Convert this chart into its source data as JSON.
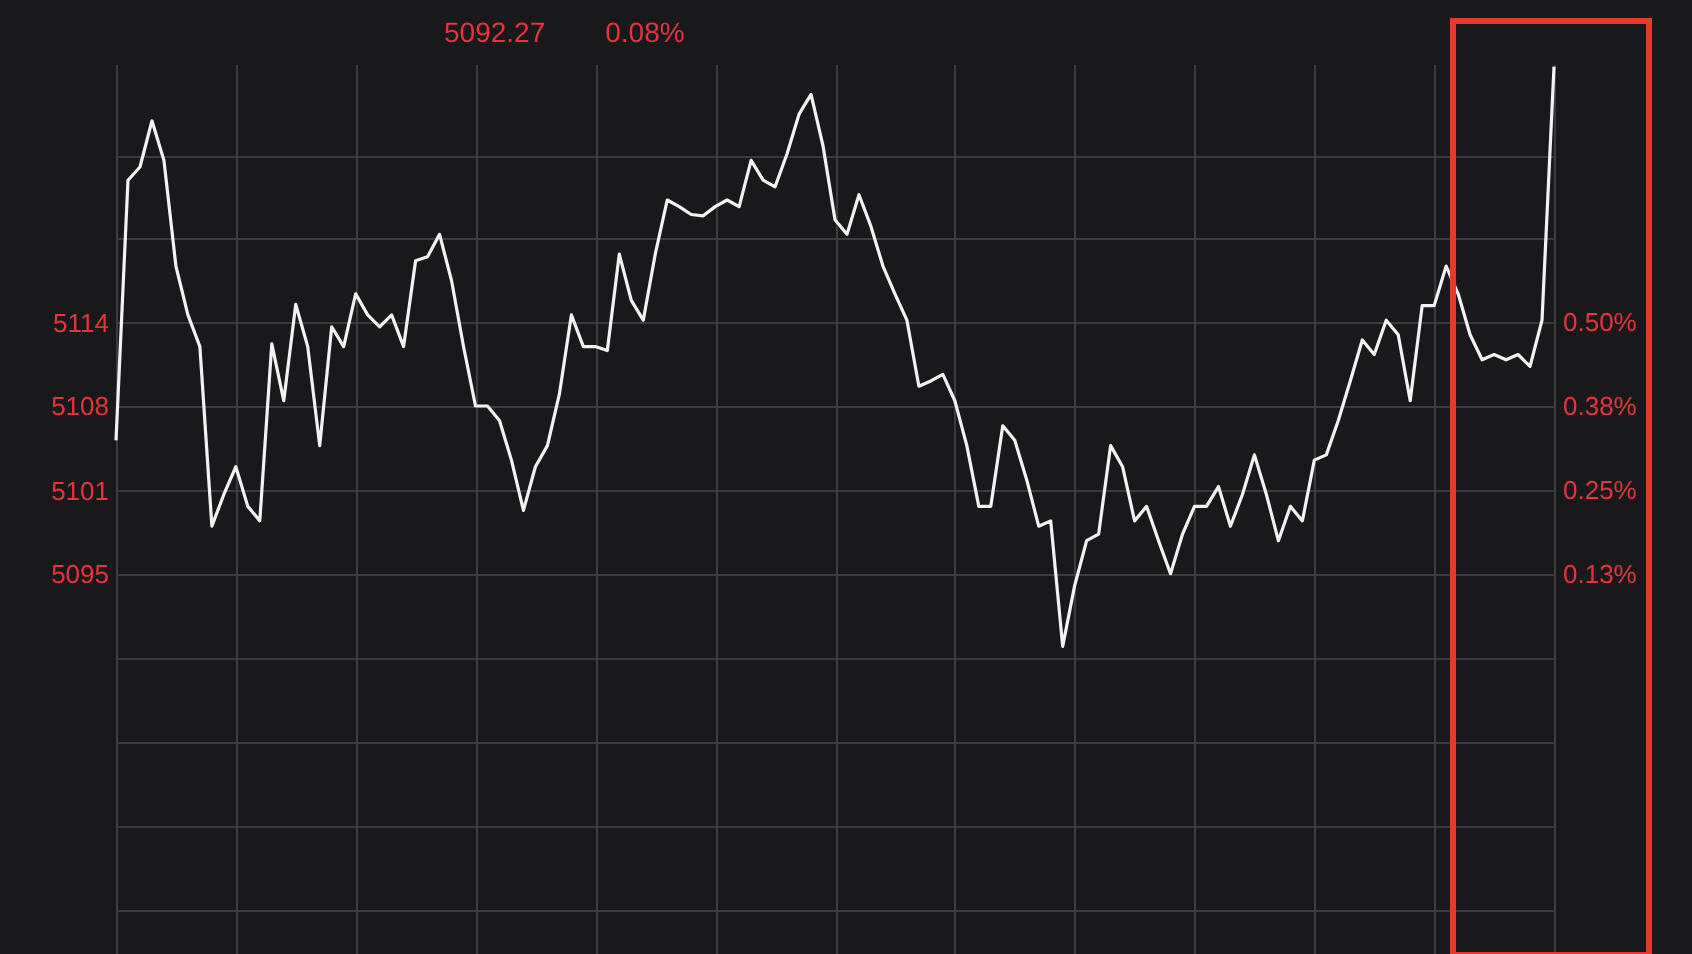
{
  "chart_data": {
    "type": "line",
    "annotations": [
      "5092.27",
      "0.08%"
    ],
    "categories": [
      null,
      null,
      null,
      null,
      null,
      null,
      null,
      null,
      null,
      null,
      null,
      null,
      null,
      null,
      null,
      null,
      null,
      null,
      null,
      null,
      null,
      null,
      null,
      null,
      null,
      null,
      null,
      null,
      null,
      null,
      null,
      null,
      null,
      null,
      null,
      null,
      null,
      null,
      null,
      null,
      null,
      null,
      null,
      null,
      null,
      null,
      null,
      null,
      null,
      null,
      null,
      null,
      null,
      null,
      null,
      null,
      null,
      null,
      null,
      null,
      null,
      null,
      null,
      null,
      null,
      null,
      null,
      null,
      null,
      null,
      null,
      null,
      null,
      null,
      null,
      null,
      null,
      null,
      null,
      null,
      null,
      null,
      null,
      null,
      null,
      null,
      null,
      null,
      null,
      null,
      null,
      null,
      null,
      null,
      null,
      null,
      null,
      null,
      null,
      null,
      null,
      null,
      null,
      null,
      null,
      null,
      null,
      null,
      null,
      null,
      null,
      null,
      null,
      null,
      null,
      null,
      null,
      null,
      null,
      null,
      null
    ],
    "series": [
      {
        "color": "#f2f2f2",
        "values": [
          5104.9,
          5124.6,
          5125.6,
          5129.1,
          5126.1,
          5118.1,
          5114.4,
          5112.0,
          5098.4,
          5100.8,
          5102.9,
          5099.9,
          5098.8,
          5112.2,
          5107.9,
          5115.2,
          5112.0,
          5104.5,
          5113.5,
          5112.0,
          5116.0,
          5114.4,
          5113.5,
          5114.4,
          5112.0,
          5118.5,
          5118.8,
          5120.5,
          5117.0,
          5112.0,
          5107.5,
          5107.5,
          5106.4,
          5103.4,
          5099.6,
          5102.9,
          5104.5,
          5108.4,
          5114.4,
          5112.0,
          5112.0,
          5111.7,
          5119.0,
          5115.5,
          5114.0,
          5119.0,
          5123.1,
          5122.6,
          5122.0,
          5121.9,
          5122.6,
          5123.1,
          5122.6,
          5126.1,
          5124.6,
          5124.1,
          5126.6,
          5129.6,
          5131.1,
          5127.2,
          5121.6,
          5120.5,
          5123.5,
          5121.1,
          5118.1,
          5116.0,
          5114.0,
          5109.0,
          5109.4,
          5109.9,
          5107.9,
          5104.5,
          5099.9,
          5099.9,
          5106.0,
          5104.9,
          5101.9,
          5098.4,
          5098.8,
          5089.3,
          5093.9,
          5097.3,
          5097.8,
          5104.5,
          5102.9,
          5098.8,
          5099.9,
          5097.3,
          5094.8,
          5097.8,
          5099.9,
          5099.9,
          5101.4,
          5098.4,
          5100.8,
          5103.8,
          5100.8,
          5097.3,
          5099.9,
          5098.8,
          5103.4,
          5103.8,
          5106.4,
          5109.4,
          5112.5,
          5111.4,
          5114.0,
          5112.9,
          5107.9,
          5115.1,
          5115.1,
          5118.1,
          5116.0,
          5112.9,
          5111.0,
          5111.4,
          5111.0,
          5111.4,
          5110.5,
          5114.0,
          5133.2
        ]
      }
    ],
    "ylim": [
      5066.0,
      5133.4
    ],
    "yticks": [
      {
        "value": 5069.3,
        "label": null
      },
      {
        "value": 5075.7,
        "label": null
      },
      {
        "value": 5082.0,
        "label": null
      },
      {
        "value": 5088.4,
        "label": null
      },
      {
        "value": 5094.8,
        "label": "5095"
      },
      {
        "value": 5101.1,
        "label": "5101"
      },
      {
        "value": 5107.5,
        "label": "5108"
      },
      {
        "value": 5113.8,
        "label": "5114"
      },
      {
        "value": 5120.2,
        "label": null
      },
      {
        "value": 5126.5,
        "label": null
      }
    ],
    "y2lim": [
      -0.44,
      0.884
    ],
    "y2ticks": [
      {
        "value": -0.375,
        "label": null
      },
      {
        "value": -0.25,
        "label": null
      },
      {
        "value": -0.125,
        "label": null
      },
      {
        "value": 0,
        "label": null
      },
      {
        "value": 0.125,
        "label": "0.13%"
      },
      {
        "value": 0.25,
        "label": "0.25%"
      },
      {
        "value": 0.375,
        "label": "0.38%"
      },
      {
        "value": 0.5,
        "label": "0.50%"
      },
      {
        "value": 0.625,
        "label": null
      },
      {
        "value": 0.75,
        "label": null
      }
    ],
    "grid": true
  }
}
